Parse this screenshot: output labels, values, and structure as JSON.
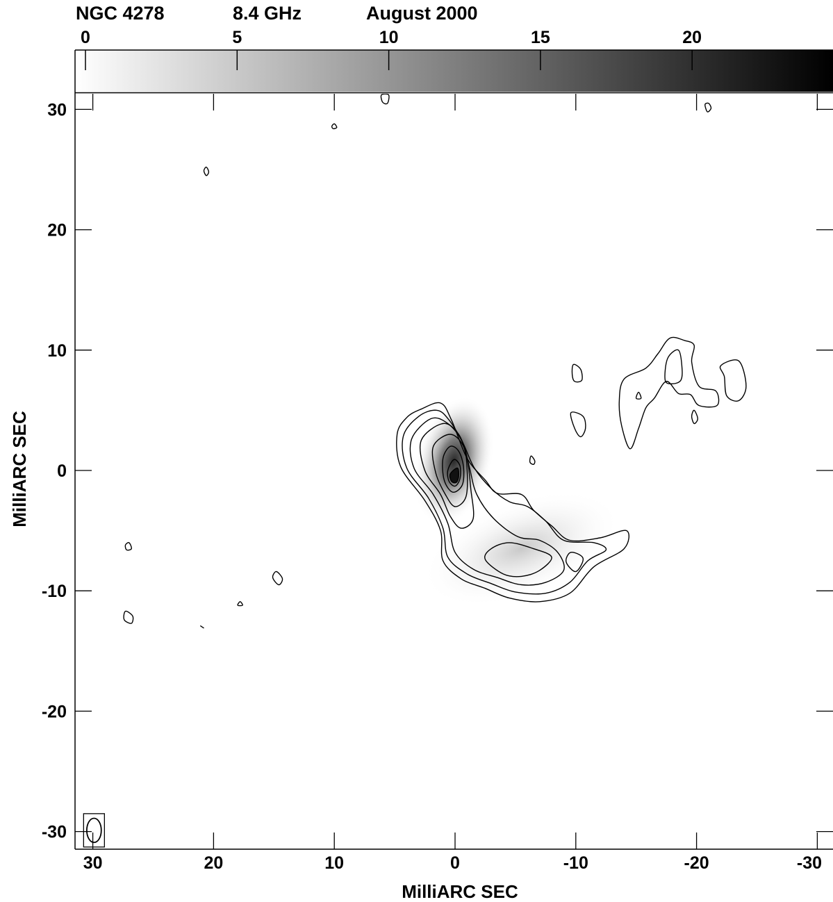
{
  "header": {
    "source": "NGC 4278",
    "frequency": "8.4 GHz",
    "epoch": "August 2000"
  },
  "chart_data": {
    "type": "heatmap",
    "image_kind": "radio map, grayscale with contours",
    "colorbar": {
      "range": [
        0,
        25
      ],
      "ticks": [
        0,
        5,
        10,
        15,
        20
      ],
      "tick_labels": [
        "0",
        "5",
        "10",
        "15",
        "20"
      ],
      "colormap": "white-to-black",
      "placement": "top"
    },
    "xlabel": "MilliARC SEC",
    "ylabel": "MilliARC SEC",
    "xlim": [
      31,
      -31.5
    ],
    "ylim": [
      -31.5,
      31.5
    ],
    "x_ticks": [
      30,
      20,
      10,
      0,
      -10,
      -20,
      -30
    ],
    "x_tick_labels": [
      "30",
      "20",
      "10",
      "0",
      "-10",
      "-20",
      "-30"
    ],
    "y_ticks": [
      30,
      20,
      10,
      0,
      -10,
      -20,
      -30
    ],
    "y_tick_labels": [
      "30",
      "20",
      "10",
      "0",
      "-10",
      "-20",
      "-30"
    ],
    "grid": false,
    "peak": {
      "x": 0.1,
      "y": -0.1
    },
    "beam": {
      "x": 29.9,
      "y": -29.9,
      "major": 2.0,
      "minor": 1.2,
      "pa": 0
    },
    "contours": [
      {
        "level": 1,
        "points": [
          [
            4.8,
            3.0
          ],
          [
            4.5,
            0.3
          ],
          [
            2.5,
            -2.5
          ],
          [
            1.2,
            -5.0
          ],
          [
            1.0,
            -7.5
          ],
          [
            -0.5,
            -9.0
          ],
          [
            -2.5,
            -9.8
          ],
          [
            -4.5,
            -10.6
          ],
          [
            -7.0,
            -10.9
          ],
          [
            -9.5,
            -10.2
          ],
          [
            -11.5,
            -8.0
          ],
          [
            -14.0,
            -6.5
          ],
          [
            -14.2,
            -5.0
          ],
          [
            -12.0,
            -5.6
          ],
          [
            -9.5,
            -5.8
          ],
          [
            -8.0,
            -4.6
          ],
          [
            -6.5,
            -3.3
          ],
          [
            -5.5,
            -2.0
          ],
          [
            -3.5,
            -1.9
          ],
          [
            -2.5,
            -0.8
          ],
          [
            -1.0,
            1.0
          ],
          [
            0.3,
            4.2
          ],
          [
            1.2,
            5.6
          ],
          [
            2.8,
            5.1
          ],
          [
            4.0,
            4.4
          ]
        ],
        "closed": true
      },
      {
        "level": 2,
        "points": [
          [
            4.3,
            2.8
          ],
          [
            4.0,
            0.2
          ],
          [
            2.2,
            -2.3
          ],
          [
            1.0,
            -4.8
          ],
          [
            0.6,
            -7.2
          ],
          [
            -1.0,
            -8.6
          ],
          [
            -3.0,
            -9.4
          ],
          [
            -5.0,
            -10.1
          ],
          [
            -7.5,
            -10.2
          ],
          [
            -9.5,
            -9.3
          ],
          [
            -11.0,
            -7.5
          ],
          [
            -12.5,
            -6.6
          ],
          [
            -11.5,
            -6.0
          ],
          [
            -9.0,
            -5.8
          ],
          [
            -7.5,
            -4.2
          ],
          [
            -6.0,
            -3.0
          ],
          [
            -4.5,
            -2.6
          ],
          [
            -3.0,
            -1.5
          ],
          [
            -1.6,
            0.2
          ],
          [
            -0.6,
            2.4
          ],
          [
            0.5,
            4.2
          ],
          [
            1.5,
            5.0
          ],
          [
            3.0,
            4.5
          ]
        ],
        "closed": true
      },
      {
        "level": 3,
        "points": [
          [
            3.6,
            2.6
          ],
          [
            3.4,
            0.2
          ],
          [
            1.8,
            -2.0
          ],
          [
            0.6,
            -4.4
          ],
          [
            0.0,
            -6.8
          ],
          [
            -1.5,
            -8.2
          ],
          [
            -3.5,
            -8.9
          ],
          [
            -5.5,
            -9.5
          ],
          [
            -7.5,
            -9.3
          ],
          [
            -9.0,
            -8.3
          ],
          [
            -8.5,
            -6.8
          ],
          [
            -7.0,
            -5.8
          ],
          [
            -5.2,
            -5.5
          ],
          [
            -3.2,
            -4.0
          ],
          [
            -1.8,
            -2.0
          ],
          [
            -1.2,
            0.2
          ],
          [
            -0.6,
            2.4
          ],
          [
            0.6,
            3.9
          ],
          [
            2.0,
            4.3
          ]
        ],
        "closed": true
      },
      {
        "level": 4,
        "points": [
          [
            2.8,
            2.5
          ],
          [
            2.5,
            0.0
          ],
          [
            1.2,
            -2.0
          ],
          [
            0.4,
            -3.8
          ],
          [
            -0.5,
            -4.8
          ],
          [
            -1.5,
            -4.0
          ],
          [
            -1.3,
            -1.5
          ],
          [
            -1.0,
            1.0
          ],
          [
            -0.3,
            3.0
          ],
          [
            1.0,
            3.9
          ]
        ],
        "closed": true
      },
      {
        "level": 5,
        "points": [
          [
            1.8,
            2.0
          ],
          [
            1.6,
            -0.2
          ],
          [
            0.8,
            -2.0
          ],
          [
            0.0,
            -3.0
          ],
          [
            -0.9,
            -2.2
          ],
          [
            -1.0,
            0.0
          ],
          [
            -0.7,
            2.0
          ],
          [
            0.4,
            3.0
          ]
        ],
        "closed": true
      },
      {
        "level": 6,
        "points": [
          [
            1.0,
            1.0
          ],
          [
            0.9,
            -0.8
          ],
          [
            0.2,
            -1.8
          ],
          [
            -0.6,
            -1.2
          ],
          [
            -0.7,
            0.3
          ],
          [
            -0.3,
            1.6
          ],
          [
            0.4,
            2.0
          ]
        ],
        "closed": true
      },
      {
        "level": 7,
        "points": [
          [
            0.6,
            0.0
          ],
          [
            0.5,
            -0.9
          ],
          [
            0.0,
            -1.3
          ],
          [
            -0.4,
            -0.7
          ],
          [
            -0.4,
            0.4
          ],
          [
            0.1,
            0.9
          ]
        ],
        "closed": true
      },
      {
        "level": 8,
        "points": [
          [
            0.4,
            -0.3
          ],
          [
            0.3,
            -0.9
          ],
          [
            -0.1,
            -1.0
          ],
          [
            -0.3,
            -0.5
          ],
          [
            -0.2,
            0.2
          ]
        ],
        "closed": true
      },
      {
        "level": 2,
        "points": [
          [
            -2.5,
            -7.4
          ],
          [
            -4.0,
            -8.6
          ],
          [
            -5.5,
            -8.8
          ],
          [
            -7.0,
            -8.3
          ],
          [
            -8.0,
            -7.2
          ],
          [
            -6.5,
            -6.5
          ],
          [
            -4.5,
            -6.0
          ],
          [
            -3.0,
            -6.5
          ]
        ],
        "closed": true
      },
      {
        "level": 2,
        "points": [
          [
            -9.2,
            -7.6
          ],
          [
            -10.0,
            -8.4
          ],
          [
            -10.6,
            -7.3
          ],
          [
            -9.6,
            -6.8
          ]
        ],
        "closed": true
      },
      {
        "level": 1,
        "points": [
          [
            -14.5,
            1.8
          ],
          [
            -13.8,
            3.7
          ],
          [
            -13.6,
            5.8
          ],
          [
            -14.0,
            7.6
          ],
          [
            -15.8,
            8.5
          ],
          [
            -16.8,
            9.7
          ],
          [
            -17.8,
            11.0
          ],
          [
            -19.0,
            10.8
          ],
          [
            -19.8,
            10.4
          ],
          [
            -19.6,
            9.0
          ],
          [
            -20.2,
            7.0
          ],
          [
            -21.6,
            6.6
          ],
          [
            -21.7,
            5.4
          ],
          [
            -20.2,
            5.4
          ],
          [
            -19.5,
            6.3
          ],
          [
            -18.5,
            6.4
          ],
          [
            -17.5,
            7.4
          ],
          [
            -16.5,
            6.0
          ],
          [
            -15.8,
            5.2
          ],
          [
            -15.2,
            3.5
          ]
        ],
        "closed": true
      },
      {
        "level": 2,
        "points": [
          [
            -17.4,
            7.5
          ],
          [
            -17.6,
            9.3
          ],
          [
            -18.5,
            10.0
          ],
          [
            -18.8,
            8.5
          ],
          [
            -18.7,
            7.5
          ],
          [
            -18.0,
            7.2
          ]
        ],
        "closed": true
      },
      {
        "level": 1,
        "points": [
          [
            -22.0,
            8.7
          ],
          [
            -23.5,
            9.1
          ],
          [
            -24.1,
            7.0
          ],
          [
            -23.5,
            5.8
          ],
          [
            -22.5,
            6.2
          ],
          [
            -22.3,
            7.8
          ]
        ],
        "closed": true
      },
      {
        "level": 1,
        "points": [
          [
            -9.8,
            8.8
          ],
          [
            -10.4,
            8.4
          ],
          [
            -10.5,
            7.5
          ],
          [
            -9.9,
            7.4
          ],
          [
            -9.7,
            8.0
          ]
        ],
        "closed": true
      },
      {
        "level": 1,
        "points": [
          [
            -9.6,
            4.8
          ],
          [
            -10.6,
            4.5
          ],
          [
            -10.8,
            3.5
          ],
          [
            -10.4,
            2.8
          ],
          [
            -9.9,
            3.5
          ]
        ],
        "closed": true
      },
      {
        "level": 1,
        "points": [
          [
            -6.3,
            1.2
          ],
          [
            -6.6,
            0.8
          ],
          [
            -6.5,
            0.5
          ],
          [
            -6.2,
            0.7
          ]
        ],
        "closed": true
      },
      {
        "level": 1,
        "points": [
          [
            -15.2,
            6.5
          ],
          [
            -15.4,
            6.0
          ],
          [
            -15.0,
            6.0
          ]
        ],
        "closed": true
      },
      {
        "level": 1,
        "points": [
          [
            -19.8,
            5.0
          ],
          [
            -20.1,
            4.3
          ],
          [
            -19.8,
            3.9
          ],
          [
            -19.6,
            4.5
          ]
        ],
        "closed": true
      },
      {
        "level": 1,
        "points": [
          [
            14.8,
            -8.4
          ],
          [
            14.3,
            -9.0
          ],
          [
            14.6,
            -9.5
          ],
          [
            15.1,
            -8.9
          ]
        ],
        "closed": true
      },
      {
        "level": 1,
        "points": [
          [
            27.3,
            -11.7
          ],
          [
            26.7,
            -12.1
          ],
          [
            26.8,
            -12.7
          ],
          [
            27.4,
            -12.4
          ]
        ],
        "closed": true
      },
      {
        "level": 1,
        "points": [
          [
            27.0,
            -6.0
          ],
          [
            26.8,
            -6.5
          ],
          [
            27.2,
            -6.6
          ],
          [
            27.3,
            -6.2
          ]
        ],
        "closed": true
      },
      {
        "level": 1,
        "points": [
          [
            17.8,
            -10.9
          ],
          [
            17.6,
            -11.2
          ],
          [
            18.0,
            -11.2
          ]
        ],
        "closed": true
      },
      {
        "level": 1,
        "points": [
          [
            20.6,
            25.2
          ],
          [
            20.4,
            24.8
          ],
          [
            20.6,
            24.5
          ],
          [
            20.8,
            24.9
          ]
        ],
        "closed": true
      },
      {
        "level": 1,
        "points": [
          [
            10.0,
            28.8
          ],
          [
            9.8,
            28.5
          ],
          [
            10.1,
            28.4
          ],
          [
            10.2,
            28.6
          ]
        ],
        "closed": true
      },
      {
        "level": 1,
        "points": [
          [
            6.1,
            31.2
          ],
          [
            6.0,
            30.6
          ],
          [
            5.6,
            30.5
          ],
          [
            5.5,
            31.2
          ]
        ],
        "closed": true
      },
      {
        "level": 1,
        "points": [
          [
            -20.7,
            30.4
          ],
          [
            -20.9,
            29.8
          ],
          [
            -21.2,
            30.1
          ],
          [
            -21.0,
            30.5
          ]
        ],
        "closed": true
      },
      {
        "level": 1,
        "points": [
          [
            21.1,
            -12.9
          ],
          [
            20.8,
            -13.1
          ]
        ],
        "closed": false
      }
    ]
  }
}
